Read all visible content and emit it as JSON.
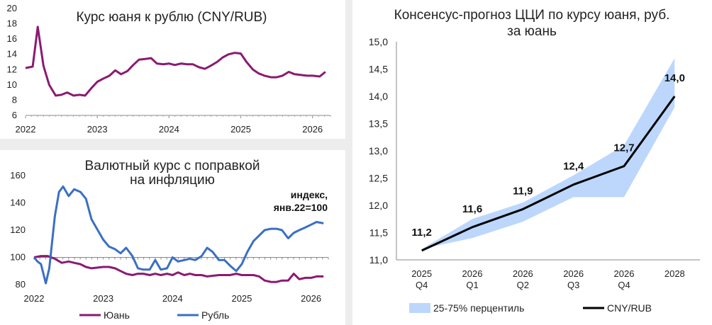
{
  "chart_data": [
    {
      "type": "line",
      "title": "Курс юаня к рублю (CNY/RUB)",
      "ylim": [
        6,
        20
      ],
      "yticks": [
        6,
        8,
        10,
        12,
        14,
        16,
        18,
        20
      ],
      "xticks": [
        "2022",
        "2023",
        "2024",
        "2025",
        "2026"
      ],
      "series": [
        {
          "color": "#8b1a72",
          "points": [
            [
              2022.0,
              12.2
            ],
            [
              2022.1,
              12.4
            ],
            [
              2022.17,
              17.6
            ],
            [
              2022.25,
              12.5
            ],
            [
              2022.33,
              10.0
            ],
            [
              2022.42,
              8.6
            ],
            [
              2022.5,
              8.7
            ],
            [
              2022.58,
              9.0
            ],
            [
              2022.67,
              8.6
            ],
            [
              2022.75,
              8.7
            ],
            [
              2022.83,
              8.6
            ],
            [
              2022.92,
              9.6
            ],
            [
              2023.0,
              10.4
            ],
            [
              2023.08,
              10.8
            ],
            [
              2023.17,
              11.2
            ],
            [
              2023.25,
              11.9
            ],
            [
              2023.33,
              11.4
            ],
            [
              2023.42,
              11.8
            ],
            [
              2023.5,
              12.6
            ],
            [
              2023.58,
              13.3
            ],
            [
              2023.67,
              13.4
            ],
            [
              2023.75,
              13.5
            ],
            [
              2023.83,
              12.8
            ],
            [
              2023.92,
              12.7
            ],
            [
              2024.0,
              12.8
            ],
            [
              2024.08,
              12.6
            ],
            [
              2024.17,
              12.8
            ],
            [
              2024.25,
              12.7
            ],
            [
              2024.33,
              12.7
            ],
            [
              2024.42,
              12.3
            ],
            [
              2024.5,
              12.1
            ],
            [
              2024.58,
              12.5
            ],
            [
              2024.67,
              13.0
            ],
            [
              2024.75,
              13.6
            ],
            [
              2024.83,
              14.0
            ],
            [
              2024.92,
              14.2
            ],
            [
              2025.0,
              14.1
            ],
            [
              2025.08,
              13.0
            ],
            [
              2025.17,
              12.0
            ],
            [
              2025.25,
              11.5
            ],
            [
              2025.33,
              11.2
            ],
            [
              2025.42,
              11.0
            ],
            [
              2025.5,
              11.0
            ],
            [
              2025.58,
              11.2
            ],
            [
              2025.67,
              11.7
            ],
            [
              2025.75,
              11.4
            ],
            [
              2025.83,
              11.3
            ],
            [
              2025.92,
              11.2
            ],
            [
              2026.0,
              11.2
            ],
            [
              2026.1,
              11.1
            ],
            [
              2026.18,
              11.7
            ]
          ]
        }
      ]
    },
    {
      "type": "line",
      "title": "Валютный курс с поправкой на инфляцию",
      "annotation": "индекс, янв.22=100",
      "ylim": [
        80,
        160
      ],
      "yticks": [
        80,
        100,
        120,
        140,
        160
      ],
      "xticks": [
        "2022",
        "2023",
        "2024",
        "2025",
        "2026"
      ],
      "series": [
        {
          "name": "Юань",
          "color": "#8b1a72",
          "points": [
            [
              2022.0,
              100
            ],
            [
              2022.1,
              101
            ],
            [
              2022.2,
              101
            ],
            [
              2022.3,
              99
            ],
            [
              2022.4,
              96
            ],
            [
              2022.5,
              97
            ],
            [
              2022.58,
              96
            ],
            [
              2022.67,
              95
            ],
            [
              2022.75,
              93
            ],
            [
              2022.83,
              92
            ],
            [
              2023.0,
              93
            ],
            [
              2023.08,
              93
            ],
            [
              2023.17,
              92
            ],
            [
              2023.25,
              90
            ],
            [
              2023.33,
              88
            ],
            [
              2023.42,
              87
            ],
            [
              2023.5,
              88
            ],
            [
              2023.58,
              88
            ],
            [
              2023.67,
              87
            ],
            [
              2023.75,
              88
            ],
            [
              2023.83,
              87
            ],
            [
              2023.92,
              88
            ],
            [
              2024.0,
              87
            ],
            [
              2024.08,
              89
            ],
            [
              2024.17,
              87
            ],
            [
              2024.25,
              88
            ],
            [
              2024.33,
              87
            ],
            [
              2024.42,
              87
            ],
            [
              2024.5,
              86
            ],
            [
              2024.67,
              87
            ],
            [
              2024.83,
              87
            ],
            [
              2024.92,
              88
            ],
            [
              2025.0,
              87
            ],
            [
              2025.08,
              87
            ],
            [
              2025.17,
              87
            ],
            [
              2025.25,
              86
            ],
            [
              2025.33,
              83
            ],
            [
              2025.42,
              82
            ],
            [
              2025.5,
              82
            ],
            [
              2025.58,
              83
            ],
            [
              2025.67,
              83
            ],
            [
              2025.75,
              88
            ],
            [
              2025.83,
              84
            ],
            [
              2025.92,
              85
            ],
            [
              2026.0,
              85
            ],
            [
              2026.08,
              86
            ],
            [
              2026.18,
              86
            ]
          ]
        },
        {
          "name": "Рубль",
          "color": "#3a6fc4",
          "points": [
            [
              2022.0,
              100
            ],
            [
              2022.05,
              97
            ],
            [
              2022.1,
              95
            ],
            [
              2022.17,
              81
            ],
            [
              2022.22,
              92
            ],
            [
              2022.3,
              130
            ],
            [
              2022.36,
              148
            ],
            [
              2022.42,
              152
            ],
            [
              2022.5,
              145
            ],
            [
              2022.58,
              150
            ],
            [
              2022.67,
              148
            ],
            [
              2022.75,
              143
            ],
            [
              2022.83,
              128
            ],
            [
              2022.92,
              120
            ],
            [
              2023.0,
              113
            ],
            [
              2023.08,
              108
            ],
            [
              2023.17,
              106
            ],
            [
              2023.25,
              103
            ],
            [
              2023.33,
              107
            ],
            [
              2023.42,
              101
            ],
            [
              2023.5,
              92
            ],
            [
              2023.58,
              91
            ],
            [
              2023.67,
              91
            ],
            [
              2023.75,
              98
            ],
            [
              2023.83,
              91
            ],
            [
              2023.92,
              92
            ],
            [
              2024.0,
              100
            ],
            [
              2024.08,
              97
            ],
            [
              2024.17,
              98
            ],
            [
              2024.25,
              99
            ],
            [
              2024.33,
              98
            ],
            [
              2024.42,
              101
            ],
            [
              2024.5,
              107
            ],
            [
              2024.58,
              104
            ],
            [
              2024.67,
              98
            ],
            [
              2024.75,
              98
            ],
            [
              2024.83,
              94
            ],
            [
              2024.92,
              90
            ],
            [
              2025.0,
              95
            ],
            [
              2025.08,
              104
            ],
            [
              2025.17,
              112
            ],
            [
              2025.25,
              116
            ],
            [
              2025.33,
              120
            ],
            [
              2025.42,
              121
            ],
            [
              2025.5,
              121
            ],
            [
              2025.58,
              120
            ],
            [
              2025.67,
              114
            ],
            [
              2025.75,
              118
            ],
            [
              2025.83,
              120
            ],
            [
              2025.92,
              122
            ],
            [
              2026.0,
              124
            ],
            [
              2026.08,
              126
            ],
            [
              2026.18,
              125
            ]
          ]
        }
      ]
    },
    {
      "type": "line",
      "title": "Консенсус-прогноз ЦЦИ по курсу юаня, руб. за юань",
      "ylim": [
        11.0,
        15.0
      ],
      "yticks": [
        "11,0",
        "11,5",
        "12,0",
        "12,5",
        "13,0",
        "13,5",
        "14,0",
        "14,5",
        "15,0"
      ],
      "categories": [
        [
          "2025",
          "Q4"
        ],
        [
          "2026",
          "Q1"
        ],
        [
          "2026",
          "Q2"
        ],
        [
          "2026",
          "Q3"
        ],
        [
          "2026",
          "Q4"
        ],
        [
          "2028",
          ""
        ]
      ],
      "band": {
        "name": "25-75% перцентиль",
        "color": "#bcd7fb",
        "low": [
          11.2,
          11.4,
          11.7,
          12.15,
          12.15,
          13.8
        ],
        "high": [
          11.2,
          11.75,
          12.05,
          12.55,
          13.1,
          14.7
        ]
      },
      "series": [
        {
          "name": "CNY/RUB",
          "color": "#000000",
          "values": [
            11.17,
            11.6,
            11.93,
            12.38,
            12.72,
            14.0
          ],
          "labels": [
            "11,2",
            "11,6",
            "11,9",
            "12,4",
            "12,7",
            "14,0"
          ]
        }
      ]
    }
  ]
}
